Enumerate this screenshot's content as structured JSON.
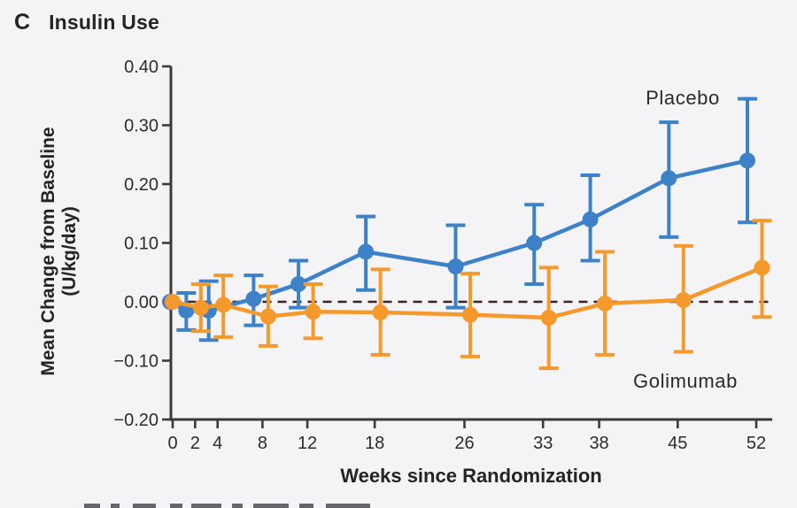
{
  "panel": {
    "letter": "C",
    "title": "Insulin Use"
  },
  "chart_data": {
    "type": "line",
    "title": "Insulin Use",
    "xlabel": "Weeks since Randomization",
    "ylabel": "Mean Change from Baseline (U/kg/day)",
    "ylabel_line1": "Mean Change from Baseline",
    "ylabel_line2": "(U/kg/day)",
    "xlim": [
      0,
      52
    ],
    "ylim": [
      -0.2,
      0.4
    ],
    "x_ticks": [
      0,
      2,
      4,
      8,
      12,
      18,
      26,
      33,
      38,
      45,
      52
    ],
    "y_ticks": [
      "0.40",
      "0.30",
      "0.20",
      "0.10",
      "0.00",
      "−0.10",
      "−0.20"
    ],
    "y_tick_values": [
      0.4,
      0.3,
      0.2,
      0.1,
      0.0,
      -0.1,
      -0.2
    ],
    "grid": false,
    "legend_position": "inline-annotations",
    "error_bars": true,
    "zero_line": {
      "style": "dashed",
      "value": 0.0,
      "color": "#3a2422"
    },
    "colors": {
      "axis": "#3a3a3a",
      "text": "#2c2c2c",
      "background": "#f4f4f6"
    },
    "series": [
      {
        "name": "Placebo",
        "color": "#3d82c9",
        "marker": "circle",
        "x": [
          0,
          2,
          4,
          8,
          12,
          18,
          26,
          33,
          38,
          45,
          52
        ],
        "values": [
          0.0,
          -0.015,
          -0.015,
          0.005,
          0.03,
          0.085,
          0.06,
          0.1,
          0.14,
          0.21,
          0.24
        ],
        "err_lo": [
          0.0,
          -0.048,
          -0.065,
          -0.04,
          -0.01,
          0.02,
          -0.01,
          0.03,
          0.07,
          0.11,
          0.135
        ],
        "err_hi": [
          0.0,
          0.015,
          0.035,
          0.045,
          0.07,
          0.145,
          0.13,
          0.165,
          0.215,
          0.305,
          0.345
        ]
      },
      {
        "name": "Golimumab",
        "color": "#f6992c",
        "marker": "circle",
        "x": [
          0,
          2,
          4,
          8,
          12,
          18,
          26,
          33,
          38,
          45,
          52
        ],
        "values": [
          0.0,
          -0.01,
          -0.005,
          -0.025,
          -0.017,
          -0.018,
          -0.022,
          -0.027,
          -0.003,
          0.003,
          0.058
        ],
        "err_lo": [
          0.0,
          -0.05,
          -0.06,
          -0.075,
          -0.062,
          -0.09,
          -0.093,
          -0.113,
          -0.09,
          -0.085,
          -0.026
        ],
        "err_hi": [
          0.0,
          0.03,
          0.045,
          0.026,
          0.03,
          0.055,
          0.048,
          0.058,
          0.085,
          0.095,
          0.138
        ]
      }
    ]
  }
}
